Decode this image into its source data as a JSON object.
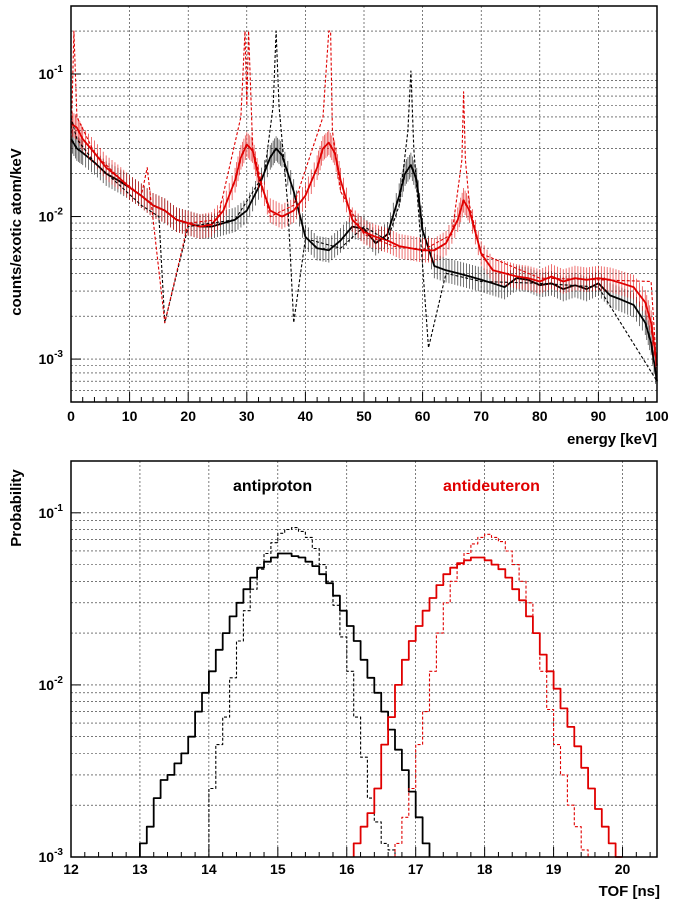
{
  "chart_data": [
    {
      "type": "line",
      "title": "",
      "xlabel": "energy [keV]",
      "ylabel": "counts/exotic atom/keV",
      "xlim": [
        0,
        100
      ],
      "ylim": [
        0.0005,
        0.3
      ],
      "yscale": "log",
      "grid": true,
      "x_ticks": [
        "0",
        "10",
        "20",
        "30",
        "40",
        "50",
        "60",
        "70",
        "80",
        "90",
        "100"
      ],
      "y_ticks": [
        {
          "mantissa": "10",
          "exponent": "-3",
          "value": 0.001
        },
        {
          "mantissa": "10",
          "exponent": "-2",
          "value": 0.01
        },
        {
          "mantissa": "10",
          "exponent": "-1",
          "value": 0.1
        }
      ],
      "series": [
        {
          "color": "#000000",
          "style": "solid",
          "x": [
            0,
            1,
            2,
            4,
            6,
            8,
            10,
            12,
            14,
            16,
            18,
            20,
            22,
            24,
            26,
            28,
            30,
            32,
            34,
            35,
            36,
            38,
            40,
            42,
            44,
            46,
            48,
            50,
            52,
            54,
            56,
            57,
            58,
            59,
            60,
            62,
            64,
            66,
            68,
            70,
            72,
            74,
            76,
            78,
            80,
            82,
            84,
            86,
            88,
            90,
            92,
            94,
            96,
            98,
            99,
            100
          ],
          "y": [
            0.035,
            0.03,
            0.028,
            0.024,
            0.02,
            0.018,
            0.016,
            0.014,
            0.012,
            0.011,
            0.0095,
            0.009,
            0.0085,
            0.0085,
            0.009,
            0.0095,
            0.011,
            0.016,
            0.026,
            0.03,
            0.027,
            0.015,
            0.0072,
            0.006,
            0.0058,
            0.0068,
            0.0085,
            0.0082,
            0.0065,
            0.0075,
            0.014,
            0.02,
            0.023,
            0.018,
            0.008,
            0.0045,
            0.0042,
            0.004,
            0.0038,
            0.0036,
            0.0034,
            0.0032,
            0.0037,
            0.0036,
            0.0033,
            0.0034,
            0.0031,
            0.0033,
            0.0031,
            0.0034,
            0.0028,
            0.0026,
            0.0024,
            0.0018,
            0.0013,
            0.0007
          ]
        },
        {
          "color": "#e00000",
          "style": "solid",
          "x": [
            0,
            1,
            2,
            4,
            6,
            8,
            10,
            12,
            14,
            16,
            18,
            20,
            22,
            24,
            26,
            28,
            29,
            30,
            31,
            32,
            34,
            36,
            38,
            40,
            42,
            43,
            44,
            45,
            46,
            48,
            50,
            52,
            54,
            56,
            58,
            60,
            62,
            64,
            66,
            67,
            68,
            70,
            72,
            74,
            76,
            78,
            80,
            82,
            84,
            86,
            88,
            90,
            92,
            94,
            96,
            98,
            99,
            100
          ],
          "y": [
            0.045,
            0.042,
            0.035,
            0.028,
            0.022,
            0.019,
            0.016,
            0.014,
            0.012,
            0.011,
            0.0095,
            0.009,
            0.0085,
            0.0088,
            0.011,
            0.018,
            0.026,
            0.032,
            0.029,
            0.019,
            0.011,
            0.01,
            0.011,
            0.014,
            0.022,
            0.03,
            0.033,
            0.028,
            0.018,
            0.0095,
            0.0078,
            0.0072,
            0.0068,
            0.0062,
            0.006,
            0.0058,
            0.0058,
            0.0065,
            0.0095,
            0.013,
            0.011,
            0.0055,
            0.0042,
            0.004,
            0.0038,
            0.0037,
            0.0035,
            0.0038,
            0.0035,
            0.0037,
            0.0036,
            0.0037,
            0.0036,
            0.0034,
            0.0032,
            0.0025,
            0.0018,
            0.0009
          ]
        },
        {
          "color": "#000000",
          "style": "dashed",
          "x": [
            0,
            1,
            4,
            8,
            12,
            15,
            16,
            20,
            28,
            33,
            34.5,
            35,
            35.5,
            37,
            38,
            40,
            46,
            50,
            54,
            56,
            57.5,
            58,
            58.5,
            60,
            61,
            64,
            70,
            80,
            90,
            100
          ],
          "y": [
            0.05,
            0.035,
            0.024,
            0.017,
            0.012,
            0.01,
            0.0018,
            0.0085,
            0.0095,
            0.02,
            0.06,
            0.2,
            0.06,
            0.012,
            0.0018,
            0.007,
            0.006,
            0.0085,
            0.0068,
            0.012,
            0.04,
            0.105,
            0.03,
            0.0045,
            0.0012,
            0.004,
            0.0035,
            0.0034,
            0.0032,
            0.0007
          ]
        },
        {
          "color": "#e00000",
          "style": "dashed",
          "x": [
            0,
            0.5,
            1,
            4,
            8,
            12,
            13,
            16,
            20,
            25,
            29,
            29.7,
            30,
            30.3,
            31,
            34,
            38,
            43,
            44,
            44.3,
            44.6,
            46,
            50,
            55,
            60,
            65,
            66.7,
            67,
            67.3,
            68,
            70,
            80,
            90,
            99,
            100
          ],
          "y": [
            0.03,
            0.2,
            0.05,
            0.028,
            0.019,
            0.014,
            0.022,
            0.0018,
            0.009,
            0.0095,
            0.05,
            0.2,
            0.06,
            0.2,
            0.03,
            0.01,
            0.012,
            0.05,
            0.2,
            0.2,
            0.04,
            0.015,
            0.0075,
            0.0062,
            0.0058,
            0.0075,
            0.025,
            0.075,
            0.025,
            0.012,
            0.0055,
            0.0037,
            0.0036,
            0.0035,
            0.0008
          ]
        }
      ]
    },
    {
      "type": "line",
      "title": "",
      "xlabel": "TOF [ns]",
      "ylabel": "Probability",
      "xlim": [
        12,
        20.5
      ],
      "ylim": [
        0.001,
        0.2
      ],
      "yscale": "log",
      "grid": true,
      "step": true,
      "x_ticks": [
        "12",
        "13",
        "14",
        "15",
        "16",
        "17",
        "18",
        "19",
        "20"
      ],
      "y_ticks": [
        {
          "mantissa": "10",
          "exponent": "-3",
          "value": 0.001
        },
        {
          "mantissa": "10",
          "exponent": "-2",
          "value": 0.01
        },
        {
          "mantissa": "10",
          "exponent": "-1",
          "value": 0.1
        }
      ],
      "legend": [
        {
          "label": "antiproton",
          "color": "#000000"
        },
        {
          "label": "antideuteron",
          "color": "#e00000"
        }
      ],
      "series": [
        {
          "name": "antiproton",
          "color": "#000000",
          "style": "solid",
          "x_start": 13.0,
          "bin_width": 0.1,
          "y": [
            0.0012,
            0.0015,
            0.0022,
            0.0028,
            0.003,
            0.0035,
            0.004,
            0.005,
            0.007,
            0.009,
            0.012,
            0.016,
            0.02,
            0.025,
            0.03,
            0.036,
            0.042,
            0.048,
            0.052,
            0.055,
            0.058,
            0.058,
            0.056,
            0.055,
            0.052,
            0.049,
            0.044,
            0.039,
            0.033,
            0.027,
            0.022,
            0.018,
            0.014,
            0.011,
            0.009,
            0.007,
            0.0055,
            0.0042,
            0.0032,
            0.0024,
            0.0017,
            0.0012
          ]
        },
        {
          "name": "antiproton",
          "color": "#000000",
          "style": "dashed",
          "x_start": 14.0,
          "bin_width": 0.1,
          "y": [
            0.0025,
            0.0045,
            0.0065,
            0.011,
            0.018,
            0.027,
            0.036,
            0.047,
            0.058,
            0.067,
            0.076,
            0.08,
            0.082,
            0.078,
            0.072,
            0.062,
            0.05,
            0.04,
            0.029,
            0.019,
            0.012,
            0.0065,
            0.0038,
            0.0022,
            0.0016,
            0.0012,
            0.0011
          ]
        },
        {
          "name": "antideuteron",
          "color": "#e00000",
          "style": "solid",
          "x_start": 16.1,
          "bin_width": 0.1,
          "y": [
            0.0012,
            0.0015,
            0.0018,
            0.0025,
            0.0045,
            0.0065,
            0.01,
            0.014,
            0.018,
            0.022,
            0.027,
            0.032,
            0.038,
            0.044,
            0.048,
            0.051,
            0.053,
            0.055,
            0.055,
            0.053,
            0.05,
            0.047,
            0.042,
            0.036,
            0.031,
            0.025,
            0.02,
            0.015,
            0.012,
            0.0095,
            0.0073,
            0.0057,
            0.0044,
            0.0033,
            0.0025,
            0.0019,
            0.0015,
            0.0012,
            0.001
          ]
        },
        {
          "name": "antideuteron",
          "color": "#e00000",
          "style": "dashed",
          "x_start": 16.7,
          "bin_width": 0.1,
          "y": [
            0.0012,
            0.0017,
            0.0025,
            0.0045,
            0.007,
            0.012,
            0.02,
            0.03,
            0.04,
            0.05,
            0.058,
            0.066,
            0.072,
            0.075,
            0.072,
            0.068,
            0.06,
            0.05,
            0.04,
            0.03,
            0.02,
            0.012,
            0.0072,
            0.0045,
            0.003,
            0.002,
            0.0015,
            0.0011,
            0.001
          ]
        }
      ]
    }
  ]
}
